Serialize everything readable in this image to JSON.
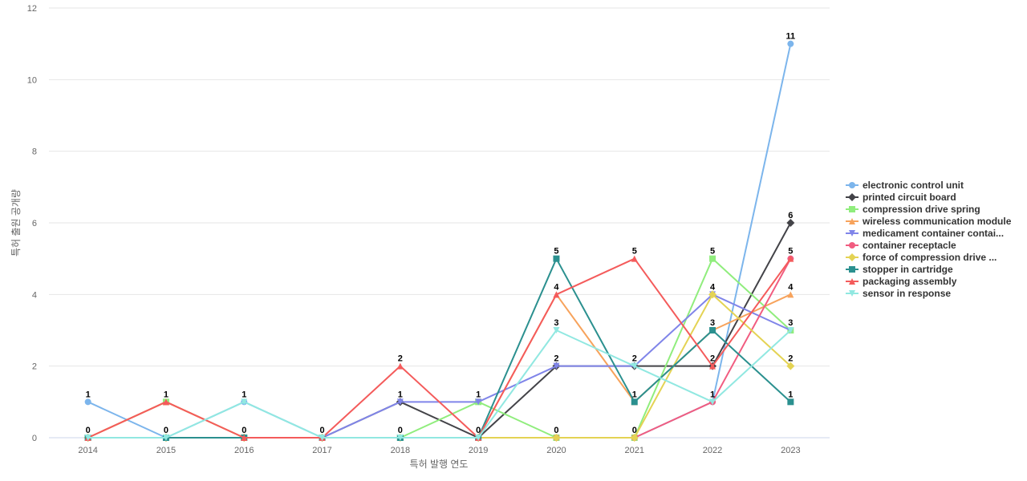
{
  "chart_data": {
    "type": "line",
    "xlabel": "특허 발행 연도",
    "ylabel": "특허 출원 공개량",
    "categories": [
      "2014",
      "2015",
      "2016",
      "2017",
      "2018",
      "2019",
      "2020",
      "2021",
      "2022",
      "2023"
    ],
    "ylim": [
      0,
      12
    ],
    "yticks": [
      0,
      2,
      4,
      6,
      8,
      10,
      12
    ],
    "grid": true,
    "legend_position": "right",
    "series": [
      {
        "name": "electronic control unit",
        "color": "#7cb5ec",
        "marker": "circle",
        "values": [
          1,
          0,
          1,
          0,
          0,
          0,
          0,
          0,
          1,
          11
        ]
      },
      {
        "name": "printed circuit board",
        "color": "#434348",
        "marker": "diamond",
        "values": [
          0,
          0,
          0,
          0,
          1,
          0,
          2,
          2,
          2,
          6
        ]
      },
      {
        "name": "compression drive spring",
        "color": "#90ed7d",
        "marker": "square",
        "values": [
          0,
          1,
          0,
          0,
          0,
          1,
          0,
          0,
          5,
          3
        ]
      },
      {
        "name": "wireless communication module",
        "color": "#f7a35c",
        "marker": "triangle",
        "values": [
          0,
          1,
          0,
          0,
          0,
          0,
          4,
          1,
          3,
          4
        ]
      },
      {
        "name": "medicament container contai...",
        "color": "#8085e9",
        "marker": "triangle-down",
        "values": [
          0,
          0,
          0,
          0,
          1,
          1,
          2,
          2,
          4,
          3
        ]
      },
      {
        "name": "container receptacle",
        "color": "#f15c80",
        "marker": "circle",
        "values": [
          0,
          0,
          0,
          0,
          0,
          0,
          0,
          0,
          1,
          5
        ]
      },
      {
        "name": "force of compression drive ...",
        "color": "#e4d354",
        "marker": "diamond",
        "values": [
          0,
          0,
          0,
          0,
          0,
          0,
          0,
          0,
          4,
          2
        ]
      },
      {
        "name": "stopper in cartridge",
        "color": "#2b908f",
        "marker": "square",
        "values": [
          0,
          0,
          0,
          0,
          0,
          0,
          5,
          1,
          3,
          1
        ]
      },
      {
        "name": "packaging assembly",
        "color": "#f45b5b",
        "marker": "triangle",
        "values": [
          0,
          1,
          0,
          0,
          2,
          0,
          4,
          5,
          2,
          5
        ]
      },
      {
        "name": "sensor in response",
        "color": "#91e8e1",
        "marker": "triangle-down",
        "values": [
          0,
          0,
          1,
          0,
          0,
          0,
          3,
          2,
          1,
          3
        ]
      }
    ],
    "data_labels": [
      {
        "x": "2014",
        "y": 1,
        "text": "1"
      },
      {
        "x": "2014",
        "y": 0,
        "text": "0"
      },
      {
        "x": "2015",
        "y": 1,
        "text": "1"
      },
      {
        "x": "2015",
        "y": 0,
        "text": "0"
      },
      {
        "x": "2016",
        "y": 1,
        "text": "1"
      },
      {
        "x": "2016",
        "y": 0,
        "text": "0"
      },
      {
        "x": "2017",
        "y": 0,
        "text": "0"
      },
      {
        "x": "2018",
        "y": 2,
        "text": "2"
      },
      {
        "x": "2018",
        "y": 1,
        "text": "1"
      },
      {
        "x": "2018",
        "y": 0,
        "text": "0"
      },
      {
        "x": "2019",
        "y": 1,
        "text": "1"
      },
      {
        "x": "2019",
        "y": 0,
        "text": "0"
      },
      {
        "x": "2020",
        "y": 5,
        "text": "5"
      },
      {
        "x": "2020",
        "y": 4,
        "text": "4"
      },
      {
        "x": "2020",
        "y": 3,
        "text": "3"
      },
      {
        "x": "2020",
        "y": 2,
        "text": "2"
      },
      {
        "x": "2020",
        "y": 0,
        "text": "0"
      },
      {
        "x": "2021",
        "y": 5,
        "text": "5"
      },
      {
        "x": "2021",
        "y": 2,
        "text": "2"
      },
      {
        "x": "2021",
        "y": 1,
        "text": "1"
      },
      {
        "x": "2021",
        "y": 0,
        "text": "0"
      },
      {
        "x": "2022",
        "y": 5,
        "text": "5"
      },
      {
        "x": "2022",
        "y": 4,
        "text": "4"
      },
      {
        "x": "2022",
        "y": 3,
        "text": "3"
      },
      {
        "x": "2022",
        "y": 2,
        "text": "2"
      },
      {
        "x": "2022",
        "y": 1,
        "text": "1"
      },
      {
        "x": "2023",
        "y": 11,
        "text": "11"
      },
      {
        "x": "2023",
        "y": 6,
        "text": "6"
      },
      {
        "x": "2023",
        "y": 5,
        "text": "5"
      },
      {
        "x": "2023",
        "y": 4,
        "text": "4"
      },
      {
        "x": "2023",
        "y": 3,
        "text": "3"
      },
      {
        "x": "2023",
        "y": 2,
        "text": "2"
      },
      {
        "x": "2023",
        "y": 1,
        "text": "1"
      }
    ]
  }
}
